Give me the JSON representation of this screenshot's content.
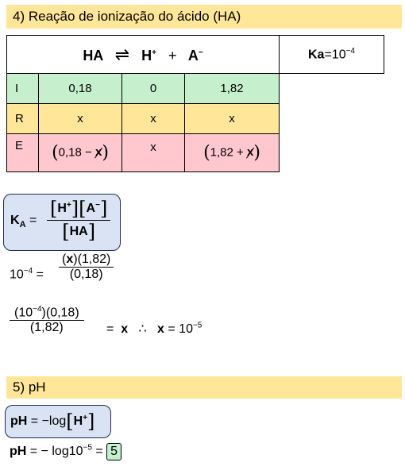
{
  "section4": {
    "title": "4)  Reação de ionização do ácido (HA)"
  },
  "reaction": {
    "ha": "HA",
    "arrow": "⇌",
    "h": "H",
    "h_charge": "+",
    "plus": "+",
    "a": "A",
    "a_charge": "−",
    "ka_label": "Ka",
    "ka_value": "=10",
    "ka_exp": "−4"
  },
  "ice_rows": [
    {
      "label": "I",
      "c1": "0,18",
      "c2": "0",
      "c3": "1,82"
    },
    {
      "label": "R",
      "c1": "x",
      "c2": "x",
      "c3": "x"
    },
    {
      "label": "E",
      "c1_a": "0,18 −",
      "c1_x": "x",
      "c2": "x",
      "c3_a": "1,82 +",
      "c3_x": "x"
    }
  ],
  "ka_expr": {
    "k": "K",
    "k_sub": "A",
    "eq": "=",
    "num_h": "H",
    "num_h_charge": "+",
    "num_a": "A",
    "num_a_charge": "−",
    "den": "HA"
  },
  "eq1": {
    "lhs": "10",
    "lhs_exp": "−4",
    "eq": "=",
    "num_x": "x",
    "num_rest": "(1,82)",
    "den": "(0,18)"
  },
  "eq2": {
    "num": "(10",
    "num_exp": "−4",
    "num_rest": ")(0,18)",
    "den": "(1,82)",
    "eq": "=",
    "x1": "x",
    "therefore": "∴",
    "x2": "x",
    "result": "= 10",
    "result_exp": "−5"
  },
  "section5": {
    "title": "5)  pH"
  },
  "ph_expr": {
    "ph": "pH",
    "eq": "= −log",
    "h": "H",
    "h_charge": "+"
  },
  "ph_calc": {
    "ph": "pH",
    "eq": "= − log10",
    "exp": "−5",
    "eq2": "=",
    "answer": "5"
  }
}
